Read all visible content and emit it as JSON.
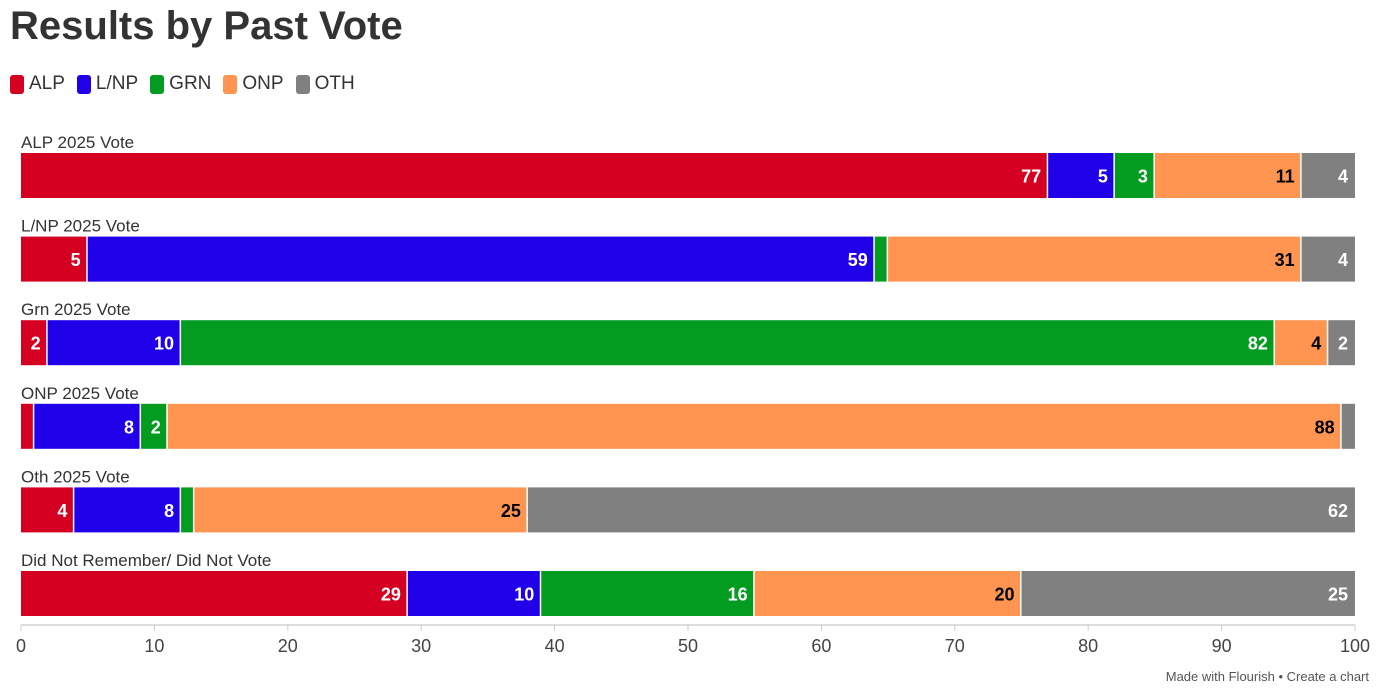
{
  "title": "Results by Past Vote",
  "footer": "Made with Flourish • Create a chart",
  "chart_data": {
    "type": "bar",
    "orientation": "horizontal-stacked",
    "title": "Results by Past Vote",
    "xlim": [
      0,
      100
    ],
    "xticks": [
      0,
      10,
      20,
      30,
      40,
      50,
      60,
      70,
      80,
      90,
      100
    ],
    "legend_position": "top-left",
    "series": [
      {
        "name": "ALP",
        "color": "#d50021",
        "label_color": "#ffffff"
      },
      {
        "name": "L/NP",
        "color": "#1f00e8",
        "label_color": "#ffffff"
      },
      {
        "name": "GRN",
        "color": "#039c20",
        "label_color": "#ffffff"
      },
      {
        "name": "ONP",
        "color": "#ff9550",
        "label_color": "#000000"
      },
      {
        "name": "OTH",
        "color": "#808080",
        "label_color": "#ffffff"
      }
    ],
    "categories": [
      "ALP 2025 Vote",
      "L/NP 2025 Vote",
      "Grn 2025 Vote",
      "ONP 2025 Vote",
      "Oth 2025 Vote",
      "Did Not Remember/ Did Not Vote"
    ],
    "values": [
      [
        77,
        5,
        3,
        11,
        4
      ],
      [
        5,
        59,
        1,
        31,
        4
      ],
      [
        2,
        10,
        82,
        4,
        2
      ],
      [
        1,
        8,
        2,
        88,
        1
      ],
      [
        4,
        8,
        1,
        25,
        62
      ],
      [
        29,
        10,
        16,
        20,
        25
      ]
    ],
    "min_labeled_value": 2
  }
}
